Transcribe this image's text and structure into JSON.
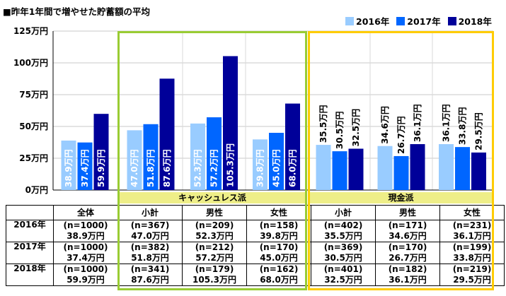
{
  "chart_data": {
    "type": "bar",
    "title": "■昨年1年間で増やせた貯蓄額の平均",
    "y_ticks": [
      "0万円",
      "25万円",
      "50万円",
      "75万円",
      "100万円",
      "125万円"
    ],
    "ylim": [
      0,
      125
    ],
    "unit": "万円",
    "groups": [
      {
        "label": "キャッシュレス派",
        "categories": [
          "小計",
          "男性",
          "女性"
        ]
      },
      {
        "label": "現金派",
        "categories": [
          "小計",
          "男性",
          "女性"
        ]
      }
    ],
    "categories": [
      "全体",
      "小計",
      "男性",
      "女性",
      "小計",
      "男性",
      "女性"
    ],
    "series": [
      {
        "name": "2016年",
        "color": "#99ccff",
        "values": [
          38.9,
          47.0,
          52.3,
          39.8,
          35.5,
          34.6,
          36.1
        ],
        "labels": [
          "38.9万円",
          "47.0万円",
          "52.3万円",
          "39.8万円",
          "35.5万円",
          "34.6万円",
          "36.1万円"
        ]
      },
      {
        "name": "2017年",
        "color": "#0066ff",
        "values": [
          37.4,
          51.8,
          57.2,
          45.0,
          30.5,
          26.7,
          33.8
        ],
        "labels": [
          "37.4万円",
          "51.8万円",
          "57.2万円",
          "45.0万円",
          "30.5万円",
          "26.7万円",
          "33.8万円"
        ]
      },
      {
        "name": "2018年",
        "color": "#000099",
        "values": [
          59.9,
          87.6,
          105.3,
          68.0,
          32.5,
          36.1,
          29.5
        ],
        "labels": [
          "59.9万円",
          "87.6万円",
          "105.3万円",
          "68.0万円",
          "32.5万円",
          "36.1万円",
          "29.5万円"
        ]
      }
    ]
  },
  "table": {
    "headers": [
      "全体",
      "小計",
      "男性",
      "女性",
      "小計",
      "男性",
      "女性"
    ],
    "rows": [
      {
        "year": "2016年",
        "n": [
          "(n=1000)",
          "(n=367)",
          "(n=209)",
          "(n=158)",
          "(n=402)",
          "(n=171)",
          "(n=231)"
        ],
        "values": [
          "38.9万円",
          "47.0万円",
          "52.3万円",
          "39.8万円",
          "35.5万円",
          "34.6万円",
          "36.1万円"
        ]
      },
      {
        "year": "2017年",
        "n": [
          "(n=1000)",
          "(n=382)",
          "(n=212)",
          "(n=170)",
          "(n=369)",
          "(n=170)",
          "(n=199)"
        ],
        "values": [
          "37.4万円",
          "51.8万円",
          "57.2万円",
          "45.0万円",
          "30.5万円",
          "26.7万円",
          "33.8万円"
        ]
      },
      {
        "year": "2018年",
        "n": [
          "(n=1000)",
          "(n=341)",
          "(n=179)",
          "(n=162)",
          "(n=401)",
          "(n=182)",
          "(n=219)"
        ],
        "values": [
          "59.9万円",
          "87.6万円",
          "105.3万円",
          "68.0万円",
          "32.5万円",
          "36.1万円",
          "29.5万円"
        ]
      }
    ]
  },
  "colors": {
    "cashless_frame": "#99cc33",
    "cash_frame": "#ffcc00",
    "group_head_bg": "#eeee88"
  }
}
